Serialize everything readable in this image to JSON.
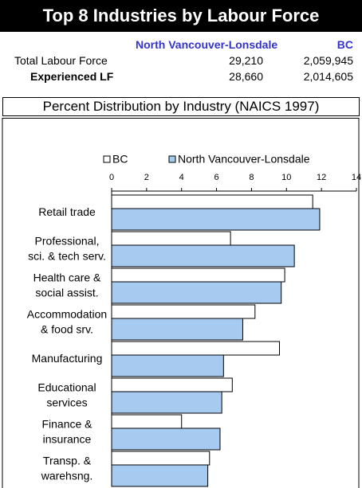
{
  "header": {
    "title": "Top 8 Industries by Labour Force",
    "columns": [
      "North Vancouver-Lonsdale",
      "BC"
    ],
    "rows": [
      [
        "Total Labour Force",
        "29,210",
        "2,059,945"
      ],
      [
        "Experienced LF",
        "28,660",
        "2,014,605"
      ]
    ],
    "section": "Percent Distribution by Industry (NAICS 1997)"
  },
  "chart_data": {
    "type": "hbar",
    "categories": [
      "Retail trade",
      "Professional,\nsci. & tech serv.",
      "Health care &\nsocial assist.",
      "Accommodation\n& food srv.",
      "Manufacturing",
      "Educational\nservices",
      "Finance &\ninsurance",
      "Transp. &\nwarehsng."
    ],
    "series": [
      {
        "name": "BC",
        "color": "#ffffff",
        "values": [
          11.5,
          6.8,
          9.9,
          8.2,
          9.6,
          6.9,
          4.0,
          5.6
        ]
      },
      {
        "name": "North Vancouver-Lonsdale",
        "color": "#a6caf0",
        "values": [
          11.9,
          10.45,
          9.7,
          7.5,
          6.4,
          6.3,
          6.2,
          5.5
        ]
      }
    ],
    "xlim": [
      0,
      14
    ],
    "xticks": [
      0,
      2,
      4,
      6,
      8,
      10,
      12,
      14
    ]
  }
}
